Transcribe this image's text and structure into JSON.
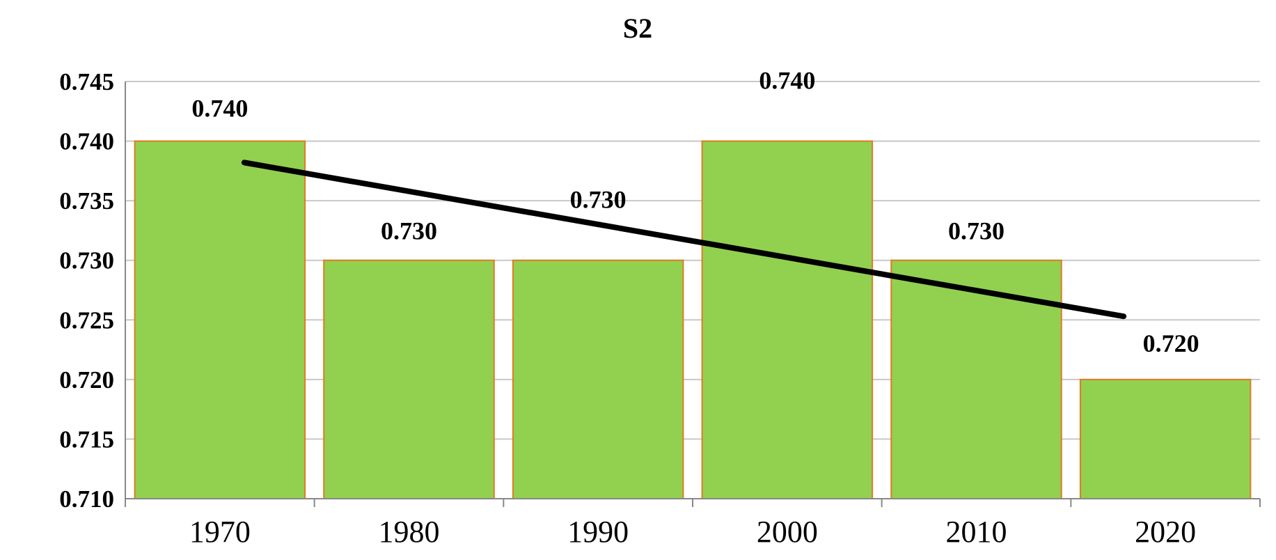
{
  "chart_data": {
    "type": "bar",
    "title": "S2",
    "xlabel": "",
    "ylabel": "",
    "categories": [
      "1970",
      "1980",
      "1990",
      "2000",
      "2010",
      "2020"
    ],
    "values": [
      0.74,
      0.73,
      0.73,
      0.74,
      0.73,
      0.72
    ],
    "data_labels": [
      "0.740",
      "0.730",
      "0.730",
      "0.740",
      "0.730",
      "0.720"
    ],
    "ylim": [
      0.71,
      0.745
    ],
    "yticks": [
      "0.710",
      "0.715",
      "0.720",
      "0.725",
      "0.730",
      "0.735",
      "0.740",
      "0.745"
    ],
    "ytick_values": [
      0.71,
      0.715,
      0.72,
      0.725,
      0.73,
      0.735,
      0.74,
      0.745
    ],
    "grid": true,
    "legend": "none",
    "trendline": {
      "type": "linear",
      "start": {
        "category": "1970",
        "value": 0.7382
      },
      "end": {
        "category": "2020",
        "value": 0.7253
      }
    },
    "colors": {
      "bar_fill": "#92d050",
      "bar_edge": "#e07b22",
      "gridline": "#c8c8c8",
      "trendline": "#000000",
      "text": "#000000"
    }
  }
}
